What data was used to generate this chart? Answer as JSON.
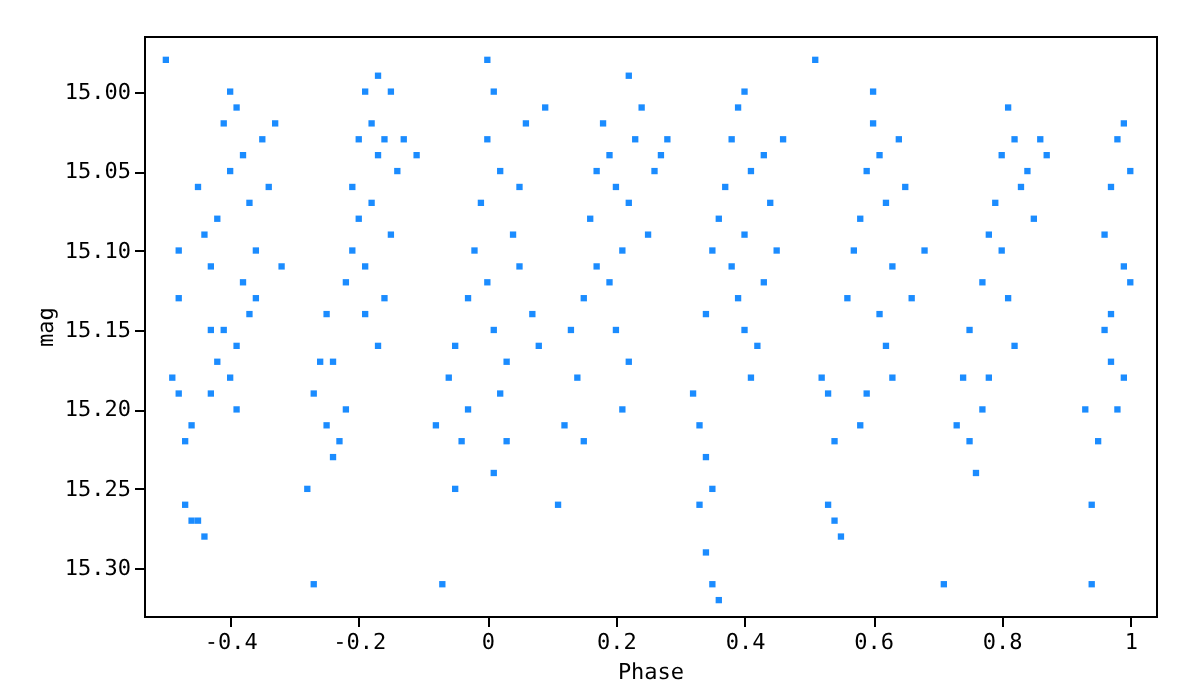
{
  "chart_data": {
    "type": "scatter",
    "xlabel": "Phase",
    "ylabel": "mag",
    "marker": "square",
    "grid": false,
    "xlim": [
      -0.534,
      1.04
    ],
    "ylim": [
      15.33,
      14.965
    ],
    "xticks": [
      -0.4,
      -0.2,
      0,
      0.2,
      0.4,
      0.6,
      0.8,
      1
    ],
    "yticks": [
      {
        "value": 15.0,
        "label": "15.00"
      },
      {
        "value": 15.05,
        "label": "15.05"
      },
      {
        "value": 15.1,
        "label": "15.10"
      },
      {
        "value": 15.15,
        "label": "15.15"
      },
      {
        "value": 15.2,
        "label": "15.20"
      },
      {
        "value": 15.25,
        "label": "15.25"
      },
      {
        "value": 15.3,
        "label": "15.30"
      }
    ],
    "series": [
      {
        "color": "#1b8cff",
        "x": [
          -0.5,
          -0.49,
          -0.48,
          -0.47,
          -0.46,
          -0.47,
          -0.46,
          -0.45,
          -0.44,
          -0.48,
          -0.48,
          -0.45,
          -0.44,
          -0.43,
          -0.42,
          -0.41,
          -0.4,
          -0.39,
          -0.4,
          -0.38,
          -0.37,
          -0.36,
          -0.36,
          -0.39,
          -0.41,
          -0.42,
          -0.43,
          -0.4,
          -0.39,
          -0.43,
          -0.37,
          -0.38,
          -0.35,
          -0.34,
          -0.33,
          -0.32,
          -0.28,
          -0.27,
          -0.27,
          -0.26,
          -0.25,
          -0.24,
          -0.23,
          -0.22,
          -0.25,
          -0.24,
          -0.22,
          -0.21,
          -0.2,
          -0.19,
          -0.18,
          -0.17,
          -0.16,
          -0.18,
          -0.2,
          -0.21,
          -0.19,
          -0.17,
          -0.16,
          -0.14,
          -0.13,
          -0.15,
          -0.19,
          -0.17,
          -0.15,
          -0.11,
          -0.08,
          -0.07,
          -0.06,
          -0.05,
          -0.04,
          -0.03,
          -0.05,
          -0.03,
          -0.02,
          -0.01,
          0.0,
          0.0,
          0.01,
          0.02,
          0.0,
          0.01,
          0.02,
          0.03,
          0.04,
          0.05,
          0.06,
          0.03,
          0.07,
          0.08,
          0.05,
          0.09,
          0.01,
          0.11,
          0.12,
          0.13,
          0.14,
          0.15,
          0.16,
          0.17,
          0.18,
          0.19,
          0.2,
          0.21,
          0.22,
          0.23,
          0.24,
          0.22,
          0.25,
          0.19,
          0.2,
          0.21,
          0.22,
          0.17,
          0.15,
          0.26,
          0.27,
          0.28,
          0.32,
          0.33,
          0.34,
          0.35,
          0.34,
          0.35,
          0.36,
          0.33,
          0.34,
          0.35,
          0.36,
          0.37,
          0.38,
          0.39,
          0.4,
          0.38,
          0.39,
          0.4,
          0.41,
          0.42,
          0.4,
          0.41,
          0.43,
          0.44,
          0.45,
          0.46,
          0.43,
          0.51,
          0.52,
          0.53,
          0.53,
          0.54,
          0.55,
          0.54,
          0.56,
          0.57,
          0.58,
          0.59,
          0.6,
          0.6,
          0.61,
          0.62,
          0.63,
          0.61,
          0.62,
          0.59,
          0.58,
          0.64,
          0.65,
          0.66,
          0.63,
          0.68,
          0.71,
          0.73,
          0.74,
          0.75,
          0.76,
          0.75,
          0.77,
          0.78,
          0.79,
          0.8,
          0.81,
          0.82,
          0.8,
          0.81,
          0.82,
          0.83,
          0.84,
          0.85,
          0.86,
          0.78,
          0.77,
          0.87,
          0.93,
          0.94,
          0.94,
          0.95,
          0.96,
          0.96,
          0.97,
          0.98,
          0.99,
          1.0,
          1.0,
          0.99,
          0.98,
          0.97,
          0.99,
          0.97
        ],
        "values": [
          14.98,
          15.18,
          15.19,
          15.22,
          15.21,
          15.26,
          15.27,
          15.27,
          15.28,
          15.1,
          15.13,
          15.06,
          15.09,
          15.11,
          15.08,
          15.02,
          15.0,
          15.01,
          15.05,
          15.04,
          15.07,
          15.1,
          15.13,
          15.16,
          15.15,
          15.17,
          15.15,
          15.18,
          15.2,
          15.19,
          15.14,
          15.12,
          15.03,
          15.06,
          15.02,
          15.11,
          15.25,
          15.31,
          15.19,
          15.17,
          15.21,
          15.23,
          15.22,
          15.2,
          15.14,
          15.17,
          15.12,
          15.1,
          15.08,
          15.11,
          15.07,
          15.04,
          15.03,
          15.02,
          15.03,
          15.06,
          15.14,
          15.16,
          15.13,
          15.05,
          15.03,
          15.09,
          15.0,
          14.99,
          15.0,
          15.04,
          15.21,
          15.31,
          15.18,
          15.25,
          15.22,
          15.2,
          15.16,
          15.13,
          15.1,
          15.07,
          15.03,
          14.98,
          15.0,
          15.05,
          15.12,
          15.15,
          15.19,
          15.22,
          15.09,
          15.06,
          15.02,
          15.17,
          15.14,
          15.16,
          15.11,
          15.01,
          15.24,
          15.26,
          15.21,
          15.15,
          15.18,
          15.13,
          15.08,
          15.05,
          15.02,
          15.04,
          15.06,
          15.1,
          15.07,
          15.03,
          15.01,
          14.99,
          15.09,
          15.12,
          15.15,
          15.2,
          15.17,
          15.11,
          15.22,
          15.05,
          15.04,
          15.03,
          15.19,
          15.21,
          15.23,
          15.25,
          15.29,
          15.31,
          15.32,
          15.26,
          15.14,
          15.1,
          15.08,
          15.06,
          15.03,
          15.01,
          15.0,
          15.11,
          15.13,
          15.15,
          15.18,
          15.16,
          15.09,
          15.05,
          15.04,
          15.07,
          15.1,
          15.03,
          15.12,
          14.98,
          15.18,
          15.19,
          15.26,
          15.27,
          15.28,
          15.22,
          15.13,
          15.1,
          15.08,
          15.05,
          15.02,
          15.0,
          15.04,
          15.07,
          15.11,
          15.14,
          15.16,
          15.19,
          15.21,
          15.03,
          15.06,
          15.13,
          15.18,
          15.1,
          15.31,
          15.21,
          15.18,
          15.22,
          15.24,
          15.15,
          15.12,
          15.09,
          15.07,
          15.04,
          15.01,
          15.03,
          15.1,
          15.13,
          15.16,
          15.06,
          15.05,
          15.08,
          15.03,
          15.18,
          15.2,
          15.04,
          15.2,
          15.31,
          15.26,
          15.22,
          15.15,
          15.09,
          15.06,
          15.03,
          15.02,
          15.05,
          15.12,
          15.18,
          15.2,
          15.17,
          15.11,
          15.14
        ]
      }
    ]
  }
}
